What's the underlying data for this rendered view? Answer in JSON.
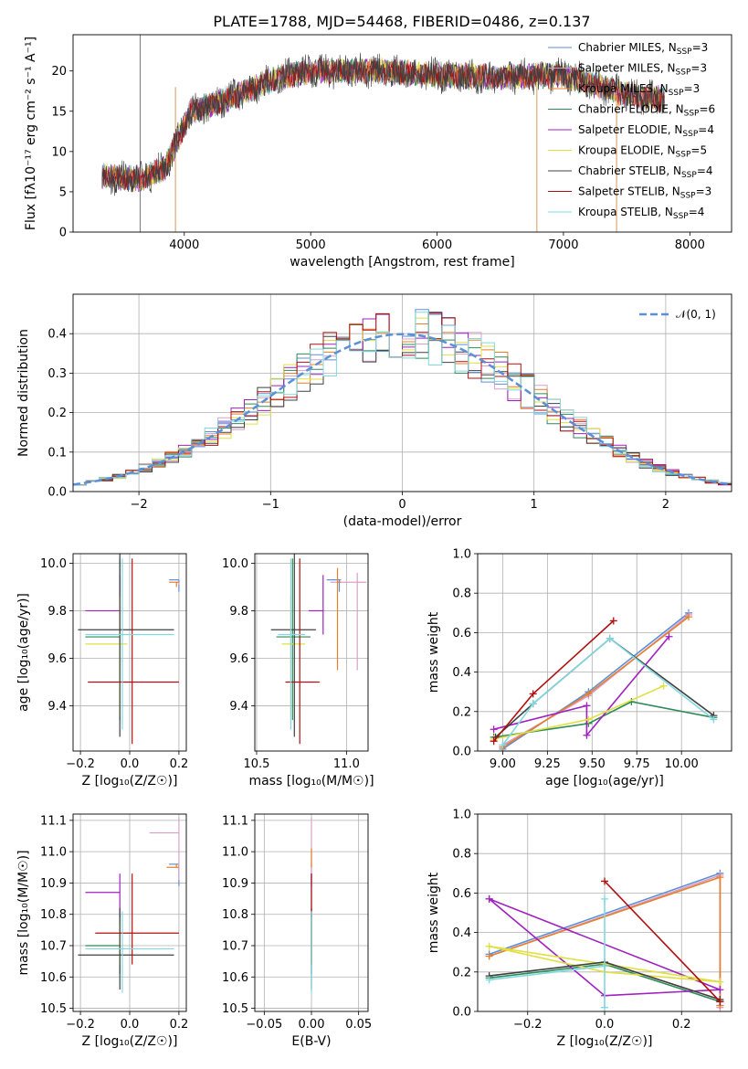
{
  "figure_title": "PLATE=1788, MJD=54468, FIBERID=0486, z=0.137",
  "colors": [
    "#5b8fd8",
    "#d8a0c8",
    "#e87f2a",
    "#2e8b57",
    "#a020c0",
    "#e0e040",
    "#404040",
    "#b01010",
    "#80d8e0"
  ],
  "chart_data": [
    {
      "id": "spectrum",
      "type": "line",
      "xlabel": "wavelength [Angstrom, rest frame]",
      "ylabel": "Flux [fλ10⁻¹⁷ erg cm⁻² s⁻¹ A⁻¹]",
      "xlim": [
        3120,
        8330
      ],
      "ylim": [
        0,
        24.5
      ],
      "xticks": [
        4000,
        5000,
        6000,
        7000,
        8000
      ],
      "yticks": [
        0,
        5,
        10,
        15,
        20
      ],
      "legend": [
        {
          "label": "Chabrier MILES, N",
          "sub": "SSP",
          "rest": "=3"
        },
        {
          "label": "Salpeter MILES, N",
          "sub": "SSP",
          "rest": "=3"
        },
        {
          "label": "Kroupa MILES, N",
          "sub": "SSP",
          "rest": "=3"
        },
        {
          "label": "Chabrier ELODIE, N",
          "sub": "SSP",
          "rest": "=6"
        },
        {
          "label": "Salpeter ELODIE, N",
          "sub": "SSP",
          "rest": "=4"
        },
        {
          "label": "Kroupa ELODIE, N",
          "sub": "SSP",
          "rest": "=5"
        },
        {
          "label": "Chabrier STELIB, N",
          "sub": "SSP",
          "rest": "=4"
        },
        {
          "label": "Salpeter STELIB, N",
          "sub": "SSP",
          "rest": "=3"
        },
        {
          "label": "Kroupa STELIB, N",
          "sub": "SSP",
          "rest": "=4"
        }
      ],
      "legend_placement": "upper right",
      "continuum_knots": [
        [
          3350,
          7.0
        ],
        [
          3650,
          6.5
        ],
        [
          3850,
          8.0
        ],
        [
          3950,
          11.5
        ],
        [
          4050,
          15.0
        ],
        [
          4250,
          16.0
        ],
        [
          4500,
          17.5
        ],
        [
          4700,
          19.0
        ],
        [
          5000,
          20.0
        ],
        [
          5500,
          20.0
        ],
        [
          6000,
          19.5
        ],
        [
          6500,
          19.2
        ],
        [
          7000,
          19.5
        ],
        [
          7500,
          17.0
        ],
        [
          7800,
          16.5
        ]
      ],
      "vertical_lines": [
        3650,
        3930,
        6790,
        7420
      ]
    },
    {
      "id": "residuals",
      "type": "histogram",
      "xlabel": "(data-model)/error",
      "ylabel": "Normed distribution",
      "xlim": [
        -2.5,
        2.5
      ],
      "ylim": [
        0,
        0.5
      ],
      "xticks": [
        -2,
        -1,
        0,
        1,
        2
      ],
      "yticks": [
        0.0,
        0.1,
        0.2,
        0.3,
        0.4
      ],
      "grid": true,
      "legend": "𝒩(0, 1)",
      "legend_placement": "upper right",
      "bin_width": 0.1
    },
    {
      "id": "age_vs_Z",
      "type": "errorbar",
      "xlabel": "Z [log₁₀(Z/Z☉)]",
      "ylabel": "age  [log₁₀(age/yr)]",
      "xlim": [
        -0.23,
        0.23
      ],
      "ylim": [
        9.21,
        10.04
      ],
      "xticks": [
        -0.2,
        0.0,
        0.2
      ],
      "yticks": [
        9.4,
        9.6,
        9.8,
        10.0
      ],
      "grid": true,
      "points": [
        {
          "c": 0,
          "x": 0.2,
          "xerr": [
            0.04,
            0.0
          ],
          "y": 9.93,
          "yerr": [
            0.05,
            0.0
          ]
        },
        {
          "c": 1,
          "x": 0.2,
          "xerr": [
            0.01,
            0.0
          ],
          "y": 9.92,
          "yerr": [
            0.01,
            0.0
          ]
        },
        {
          "c": 2,
          "x": 0.19,
          "xerr": [
            0.03,
            0.01
          ],
          "y": 9.92,
          "yerr": [
            0.02,
            0.0
          ]
        },
        {
          "c": 3,
          "x": -0.04,
          "xerr": [
            0.14,
            0.0
          ],
          "y": 9.69,
          "yerr": [
            0.35,
            0.33
          ]
        },
        {
          "c": 4,
          "x": -0.04,
          "xerr": [
            0.14,
            0.0
          ],
          "y": 9.8,
          "yerr": [
            0.1,
            0.15
          ]
        },
        {
          "c": 5,
          "x": -0.04,
          "xerr": [
            0.14,
            0.03
          ],
          "y": 9.66,
          "yerr": [
            0.3,
            0.2
          ]
        },
        {
          "c": 6,
          "x": -0.04,
          "xerr": [
            0.17,
            0.22
          ],
          "y": 9.72,
          "yerr": [
            0.45,
            0.32
          ]
        },
        {
          "c": 7,
          "x": 0.01,
          "xerr": [
            0.18,
            0.19
          ],
          "y": 9.5,
          "yerr": [
            0.26,
            0.52
          ]
        },
        {
          "c": 8,
          "x": -0.03,
          "xerr": [
            0.15,
            0.21
          ],
          "y": 9.7,
          "yerr": [
            0.4,
            0.32
          ]
        }
      ]
    },
    {
      "id": "age_vs_mass",
      "type": "errorbar",
      "xlabel": "mass [log₁₀(M/M☉)]",
      "ylabel": "",
      "xlim": [
        10.49,
        11.12
      ],
      "ylim": [
        9.21,
        10.04
      ],
      "xticks": [
        10.5,
        11.0
      ],
      "yticks": [
        9.4,
        9.6,
        9.8,
        10.0
      ],
      "grid": true,
      "points": [
        {
          "c": 0,
          "x": 10.96,
          "xerr": [
            0.07,
            0.01
          ],
          "y": 9.93,
          "yerr": [
            0.05,
            0.0
          ]
        },
        {
          "c": 1,
          "x": 11.06,
          "xerr": [
            0.15,
            0.05
          ],
          "y": 9.92,
          "yerr": [
            0.37,
            0.04
          ]
        },
        {
          "c": 2,
          "x": 10.95,
          "xerr": [
            0.0,
            0.02
          ],
          "y": 9.92,
          "yerr": [
            0.37,
            0.06
          ]
        },
        {
          "c": 3,
          "x": 10.7,
          "xerr": [
            0.09,
            0.1
          ],
          "y": 9.69,
          "yerr": [
            0.35,
            0.33
          ]
        },
        {
          "c": 4,
          "x": 10.87,
          "xerr": [
            0.08,
            0.0
          ],
          "y": 9.8,
          "yerr": [
            0.1,
            0.15
          ]
        },
        {
          "c": 5,
          "x": 10.69,
          "xerr": [
            0.05,
            0.08
          ],
          "y": 9.66,
          "yerr": [
            0.3,
            0.2
          ]
        },
        {
          "c": 6,
          "x": 10.71,
          "xerr": [
            0.13,
            0.12
          ],
          "y": 9.72,
          "yerr": [
            0.45,
            0.32
          ]
        },
        {
          "c": 7,
          "x": 10.74,
          "xerr": [
            0.08,
            0.11
          ],
          "y": 9.5,
          "yerr": [
            0.26,
            0.52
          ]
        },
        {
          "c": 8,
          "x": 10.69,
          "xerr": [
            0.07,
            0.08
          ],
          "y": 9.7,
          "yerr": [
            0.4,
            0.32
          ]
        }
      ]
    },
    {
      "id": "weight_vs_age",
      "type": "line",
      "xlabel": "age  [log₁₀(age/yr)]",
      "ylabel": "mass weight",
      "xlim": [
        8.86,
        10.28
      ],
      "ylim": [
        0,
        1.0
      ],
      "xticks": [
        9.0,
        9.25,
        9.5,
        9.75,
        10.0
      ],
      "yticks": [
        0.0,
        0.2,
        0.4,
        0.6,
        0.8,
        1.0
      ],
      "grid": true,
      "series": [
        {
          "c": 0,
          "x": [
            9.0,
            9.48,
            10.04
          ],
          "y": [
            0.01,
            0.3,
            0.7
          ]
        },
        {
          "c": 1,
          "x": [
            9.0,
            9.48,
            10.04
          ],
          "y": [
            0.03,
            0.28,
            0.69
          ]
        },
        {
          "c": 2,
          "x": [
            9.0,
            9.48,
            10.04
          ],
          "y": [
            0.02,
            0.29,
            0.68
          ]
        },
        {
          "c": 3,
          "x": [
            8.95,
            9.48,
            9.72,
            10.18
          ],
          "y": [
            0.07,
            0.14,
            0.25,
            0.17
          ]
        },
        {
          "c": 4,
          "x": [
            8.95,
            9.47,
            9.47,
            9.93
          ],
          "y": [
            0.11,
            0.23,
            0.08,
            0.58
          ]
        },
        {
          "c": 5,
          "x": [
            8.95,
            9.48,
            9.9
          ],
          "y": [
            0.06,
            0.16,
            0.33
          ]
        },
        {
          "c": 6,
          "x": [
            8.96,
            9.17,
            9.6,
            10.18
          ],
          "y": [
            0.07,
            0.24,
            0.57,
            0.18
          ]
        },
        {
          "c": 7,
          "x": [
            8.95,
            9.17,
            9.62
          ],
          "y": [
            0.05,
            0.29,
            0.66
          ]
        },
        {
          "c": 8,
          "x": [
            9.0,
            9.17,
            9.6,
            10.18
          ],
          "y": [
            0.03,
            0.24,
            0.57,
            0.16
          ]
        }
      ]
    },
    {
      "id": "mass_vs_Z",
      "type": "errorbar",
      "xlabel": "Z [log₁₀(Z/Z☉)]",
      "ylabel": "mass [log₁₀(M/M☉)]",
      "xlim": [
        -0.23,
        0.23
      ],
      "ylim": [
        10.49,
        11.12
      ],
      "xticks": [
        -0.2,
        0.0,
        0.2
      ],
      "yticks": [
        10.5,
        10.6,
        10.7,
        10.8,
        10.9,
        11.0,
        11.1
      ],
      "grid": true,
      "points": [
        {
          "c": 0,
          "x": 0.2,
          "xerr": [
            0.04,
            0.0
          ],
          "y": 10.96,
          "yerr": [
            0.07,
            0.0
          ]
        },
        {
          "c": 1,
          "x": 0.2,
          "xerr": [
            0.12,
            0.0
          ],
          "y": 11.06,
          "yerr": [
            0.15,
            0.05
          ]
        },
        {
          "c": 2,
          "x": 0.19,
          "xerr": [
            0.04,
            0.01
          ],
          "y": 10.95,
          "yerr": [
            0.0,
            0.01
          ]
        },
        {
          "c": 3,
          "x": -0.04,
          "xerr": [
            0.14,
            0.0
          ],
          "y": 10.7,
          "yerr": [
            0.09,
            0.1
          ]
        },
        {
          "c": 4,
          "x": -0.04,
          "xerr": [
            0.14,
            0.0
          ],
          "y": 10.87,
          "yerr": [
            0.08,
            0.06
          ]
        },
        {
          "c": 5,
          "x": -0.04,
          "xerr": [
            0.14,
            0.03
          ],
          "y": 10.69,
          "yerr": [
            0.05,
            0.08
          ]
        },
        {
          "c": 6,
          "x": -0.04,
          "xerr": [
            0.17,
            0.22
          ],
          "y": 10.67,
          "yerr": [
            0.11,
            0.15
          ]
        },
        {
          "c": 7,
          "x": 0.01,
          "xerr": [
            0.15,
            0.19
          ],
          "y": 10.74,
          "yerr": [
            0.1,
            0.19
          ]
        },
        {
          "c": 8,
          "x": -0.03,
          "xerr": [
            0.15,
            0.21
          ],
          "y": 10.69,
          "yerr": [
            0.14,
            0.12
          ]
        }
      ]
    },
    {
      "id": "mass_vs_ebv",
      "type": "errorbar",
      "xlabel": "E(B-V)",
      "ylabel": "",
      "xlim": [
        -0.06,
        0.06
      ],
      "ylim": [
        10.49,
        11.12
      ],
      "xticks": [
        -0.05,
        0.0,
        0.05
      ],
      "yticks": [
        10.5,
        10.6,
        10.7,
        10.8,
        10.9,
        11.0,
        11.1
      ],
      "grid": true,
      "points": [
        {
          "c": 0,
          "x": 0.0,
          "xerr": [
            0,
            0
          ],
          "y": 10.96,
          "yerr": [
            0.07,
            0.0
          ]
        },
        {
          "c": 1,
          "x": 0.0,
          "xerr": [
            0,
            0
          ],
          "y": 11.06,
          "yerr": [
            0.15,
            0.05
          ]
        },
        {
          "c": 2,
          "x": 0.0,
          "xerr": [
            0,
            0
          ],
          "y": 10.95,
          "yerr": [
            0.0,
            0.06
          ]
        },
        {
          "c": 3,
          "x": 0.0,
          "xerr": [
            0,
            0
          ],
          "y": 10.7,
          "yerr": [
            0.09,
            0.1
          ]
        },
        {
          "c": 4,
          "x": 0.0,
          "xerr": [
            0,
            0
          ],
          "y": 10.87,
          "yerr": [
            0.08,
            0.06
          ]
        },
        {
          "c": 5,
          "x": 0.0,
          "xerr": [
            0,
            0
          ],
          "y": 10.69,
          "yerr": [
            0.05,
            0.08
          ]
        },
        {
          "c": 6,
          "x": 0.0,
          "xerr": [
            0,
            0
          ],
          "y": 10.67,
          "yerr": [
            0.11,
            0.15
          ]
        },
        {
          "c": 7,
          "x": 0.0,
          "xerr": [
            0,
            0
          ],
          "y": 10.74,
          "yerr": [
            0.1,
            0.19
          ]
        },
        {
          "c": 8,
          "x": 0.0,
          "xerr": [
            0,
            0
          ],
          "y": 10.69,
          "yerr": [
            0.14,
            0.12
          ]
        }
      ]
    },
    {
      "id": "weight_vs_Z",
      "type": "line",
      "xlabel": "Z [log₁₀(Z/Z☉)]",
      "ylabel": "mass weight",
      "xlim": [
        -0.33,
        0.33
      ],
      "ylim": [
        0,
        1.0
      ],
      "xticks": [
        -0.2,
        0.0,
        0.2
      ],
      "yticks": [
        0.0,
        0.2,
        0.4,
        0.6,
        0.8,
        1.0
      ],
      "grid": true,
      "series": [
        {
          "c": 0,
          "x": [
            -0.3,
            0.3,
            0.3
          ],
          "y": [
            0.29,
            0.7,
            0.03
          ]
        },
        {
          "c": 1,
          "x": [
            -0.3,
            0.3,
            0.3
          ],
          "y": [
            0.28,
            0.69,
            0.02
          ]
        },
        {
          "c": 2,
          "x": [
            -0.3,
            0.3,
            0.3
          ],
          "y": [
            0.28,
            0.68,
            0.03
          ]
        },
        {
          "c": 3,
          "x": [
            -0.3,
            0.0,
            0.3
          ],
          "y": [
            0.17,
            0.24,
            0.05
          ]
        },
        {
          "c": 4,
          "x": [
            -0.3,
            0.0,
            0.3,
            -0.3
          ],
          "y": [
            0.57,
            0.08,
            0.11,
            0.57
          ]
        },
        {
          "c": 5,
          "x": [
            -0.3,
            0.0,
            0.3,
            -0.3
          ],
          "y": [
            0.33,
            0.2,
            0.15,
            0.33
          ]
        },
        {
          "c": 6,
          "x": [
            -0.3,
            0.0,
            0.3
          ],
          "y": [
            0.18,
            0.25,
            0.06
          ]
        },
        {
          "c": 7,
          "x": [
            0.0,
            0.3,
            0.3
          ],
          "y": [
            0.66,
            0.05,
            0.05
          ]
        },
        {
          "c": 8,
          "x": [
            -0.3,
            0.0,
            0.0,
            0.0
          ],
          "y": [
            0.16,
            0.23,
            0.57,
            0.02
          ]
        }
      ]
    }
  ]
}
